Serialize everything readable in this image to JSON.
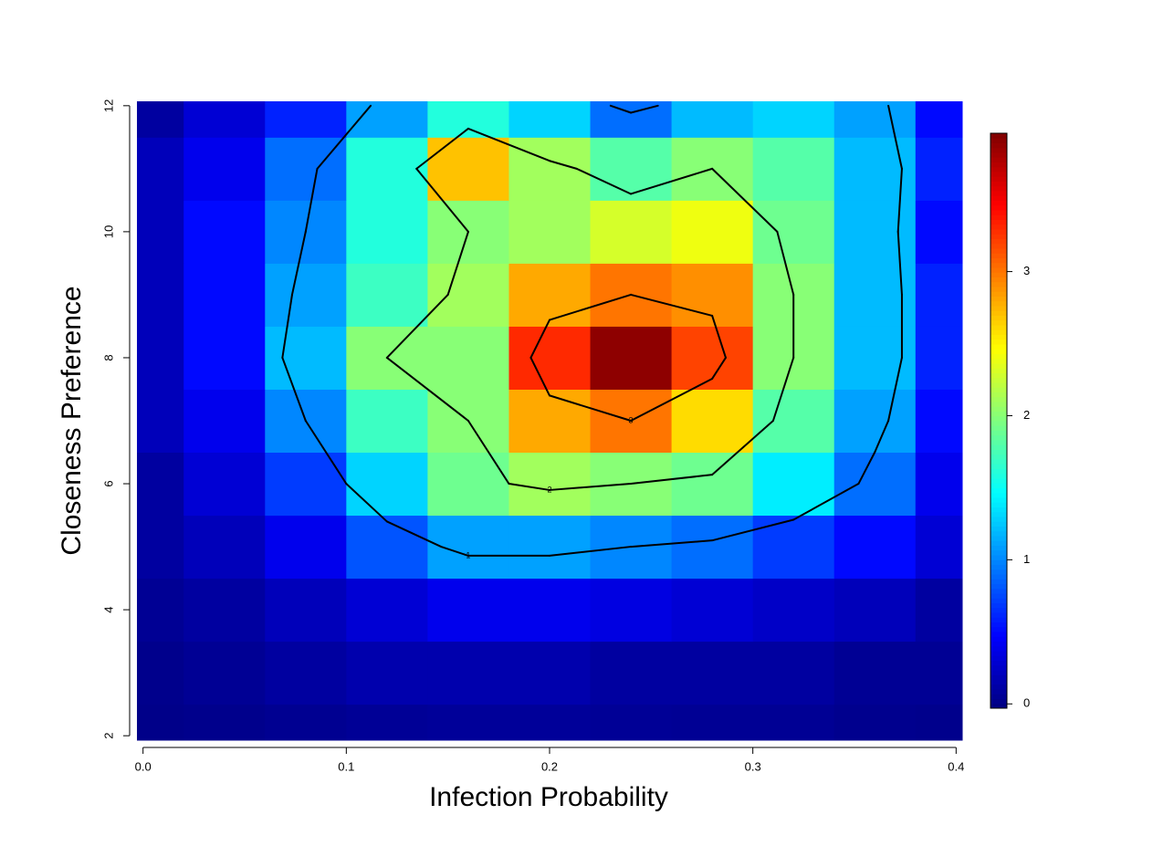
{
  "chart_data": {
    "type": "heatmap",
    "x_label": "Infection Probability",
    "y_label": "Closeness Preference",
    "x": [
      0,
      0.04,
      0.08,
      0.12,
      0.16,
      0.2,
      0.24,
      0.28,
      0.32,
      0.36,
      0.4
    ],
    "y": [
      2,
      3,
      4,
      5,
      6,
      7,
      8,
      9,
      10,
      11,
      12
    ],
    "z": [
      [
        0.01,
        0.02,
        0.04,
        0.06,
        0.07,
        0.07,
        0.06,
        0.05,
        0.05,
        0.03,
        0.02
      ],
      [
        0.02,
        0.05,
        0.1,
        0.15,
        0.15,
        0.15,
        0.1,
        0.1,
        0.1,
        0.05,
        0.05
      ],
      [
        0.05,
        0.1,
        0.2,
        0.3,
        0.4,
        0.4,
        0.35,
        0.3,
        0.25,
        0.2,
        0.1
      ],
      [
        0.1,
        0.2,
        0.4,
        0.8,
        1.1,
        1.1,
        1.0,
        0.9,
        0.7,
        0.5,
        0.3
      ],
      [
        0.1,
        0.3,
        0.7,
        1.3,
        1.9,
        2.1,
        2.0,
        1.9,
        1.4,
        0.9,
        0.4
      ],
      [
        0.2,
        0.4,
        1.0,
        1.7,
        2.0,
        2.8,
        3.0,
        2.6,
        1.8,
        1.1,
        0.5
      ],
      [
        0.2,
        0.5,
        1.2,
        2.0,
        2.0,
        3.3,
        3.9,
        3.2,
        2.0,
        1.2,
        0.6
      ],
      [
        0.2,
        0.5,
        1.1,
        1.7,
        2.1,
        2.8,
        3.0,
        2.9,
        2.0,
        1.2,
        0.6
      ],
      [
        0.2,
        0.5,
        1.0,
        1.6,
        2.0,
        2.1,
        2.3,
        2.4,
        1.9,
        1.2,
        0.5
      ],
      [
        0.2,
        0.4,
        0.9,
        1.6,
        2.7,
        2.1,
        1.8,
        2.0,
        1.8,
        1.2,
        0.6
      ],
      [
        0.1,
        0.3,
        0.6,
        1.1,
        1.6,
        1.3,
        0.9,
        1.2,
        1.3,
        1.1,
        0.5
      ]
    ],
    "xlim": [
      -0.003,
      0.403
    ],
    "ylim": [
      1.93,
      12.07
    ],
    "xticks": [
      {
        "value": 0,
        "label": "0.0"
      },
      0.1,
      0.2,
      0.3,
      0.4
    ],
    "yticks": [
      2,
      4,
      6,
      8,
      10,
      12
    ],
    "clim": [
      -0.03,
      3.96
    ],
    "cticks": [
      0,
      1,
      2,
      3
    ],
    "colors": [
      "#00007f",
      "#0000ff",
      "#007fff",
      "#00ffff",
      "#7fff7f",
      "#ffff00",
      "#ff7f00",
      "#ff0000",
      "#7f0000"
    ],
    "contour_levels": [
      1,
      2,
      3
    ],
    "contour_color": "#000000"
  }
}
